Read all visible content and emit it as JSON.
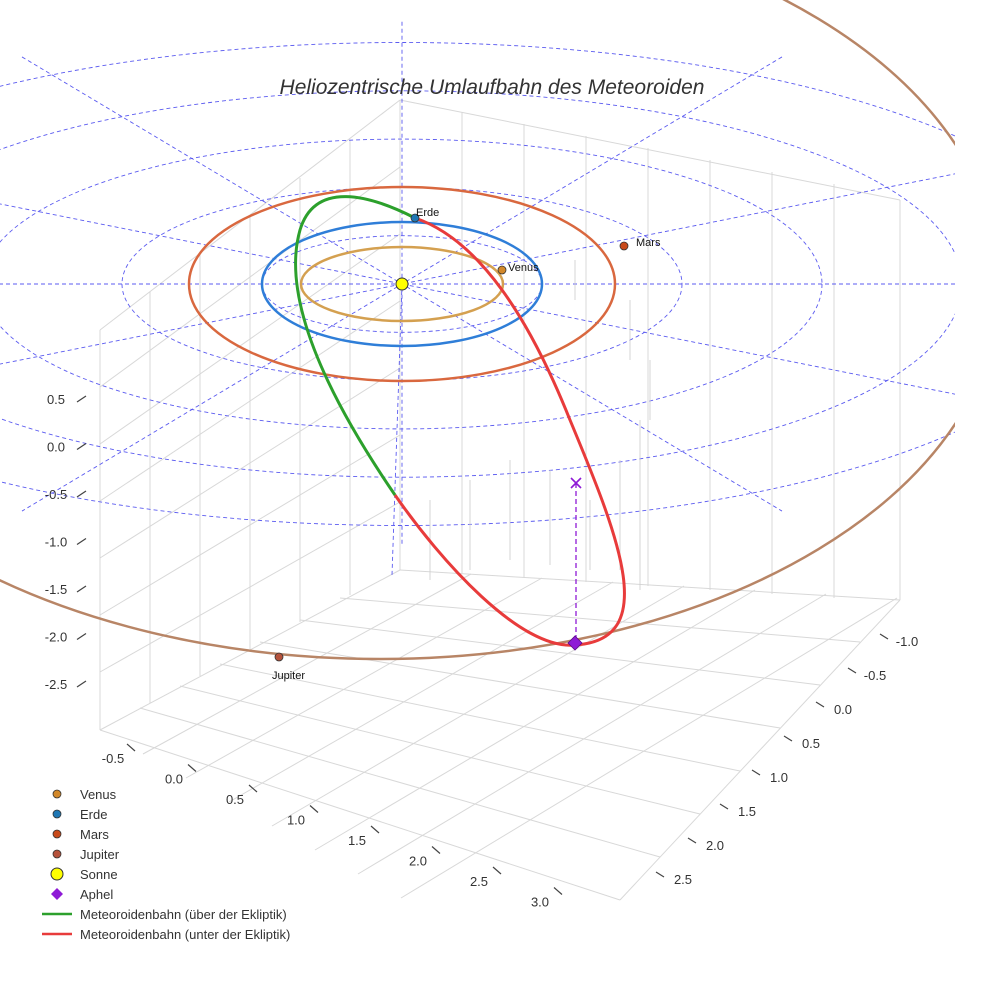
{
  "chart_data": {
    "type": "scatter3d",
    "title": "Heliozentrische Umlaufbahn des Meteoroiden",
    "axes": {
      "x": {
        "ticks": [
          "-0.5",
          "0.0",
          "0.5",
          "1.0",
          "1.5",
          "2.0",
          "2.5",
          "3.0"
        ],
        "range": [
          -0.5,
          3.0
        ]
      },
      "y": {
        "ticks": [
          "-1.0",
          "-0.5",
          "0.0",
          "0.5",
          "1.0",
          "1.5",
          "2.0",
          "2.5"
        ],
        "range": [
          -1.0,
          2.5
        ]
      },
      "z": {
        "ticks": [
          "0.5",
          "0.0",
          "-0.5",
          "-1.0",
          "-1.5",
          "-2.0",
          "-2.5"
        ],
        "range": [
          -2.5,
          0.5
        ]
      }
    },
    "planets": [
      {
        "name": "Venus",
        "label": "Venus",
        "color": "#d2882a",
        "orbit_color": "#d4a050"
      },
      {
        "name": "Erde",
        "label": "Erde",
        "color": "#1f77b4",
        "orbit_color": "#2f7ed8"
      },
      {
        "name": "Mars",
        "label": "Mars",
        "color": "#c84a1a",
        "orbit_color": "#d9683f"
      },
      {
        "name": "Jupiter",
        "label": "Jupiter",
        "color": "#b5523b",
        "orbit_color": "#b88566"
      }
    ],
    "sun": {
      "name": "Sonne",
      "color": "#ffff00"
    },
    "aphel": {
      "name": "Aphel",
      "color": "#8e1ad6"
    },
    "meteoroid_orbit": {
      "above_label": "Meteoroidenbahn (über der Ekliptik)",
      "below_label": "Meteoroidenbahn (unter der Ekliptik)",
      "above_color": "#2ca02c",
      "below_color": "#e83b3b"
    },
    "ecliptic_grid_color": "#5b5bf0",
    "legend": [
      {
        "label": "Venus",
        "marker": "circle",
        "color": "#d2882a"
      },
      {
        "label": "Erde",
        "marker": "circle",
        "color": "#1f77b4"
      },
      {
        "label": "Mars",
        "marker": "circle",
        "color": "#c84a1a"
      },
      {
        "label": "Jupiter",
        "marker": "circle",
        "color": "#b5523b"
      },
      {
        "label": "Sonne",
        "marker": "circle-large",
        "color": "#ffff00"
      },
      {
        "label": "Aphel",
        "marker": "diamond",
        "color": "#8e1ad6"
      },
      {
        "label": "Meteoroidenbahn (über der Ekliptik)",
        "marker": "line",
        "color": "#2ca02c"
      },
      {
        "label": "Meteoroidenbahn (unter der Ekliptik)",
        "marker": "line",
        "color": "#e83b3b"
      }
    ]
  }
}
